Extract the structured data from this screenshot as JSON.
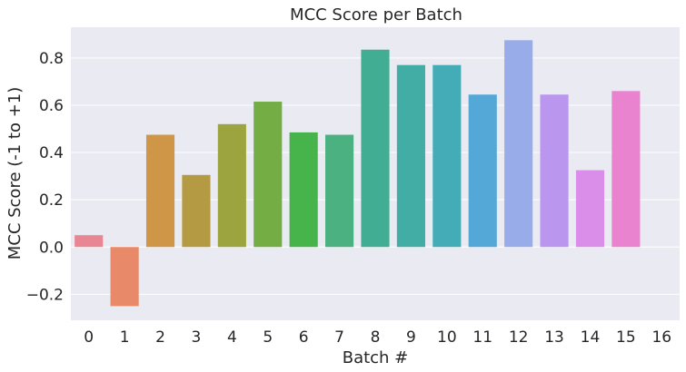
{
  "chart_data": {
    "type": "bar",
    "title": "MCC Score per Batch",
    "xlabel": "Batch #",
    "ylabel": "MCC Score (-1 to +1)",
    "categories": [
      "0",
      "1",
      "2",
      "3",
      "4",
      "5",
      "6",
      "7",
      "8",
      "9",
      "10",
      "11",
      "12",
      "13",
      "14",
      "15",
      "16"
    ],
    "values": [
      0.05,
      -0.25,
      0.475,
      0.305,
      0.52,
      0.615,
      0.485,
      0.475,
      0.835,
      0.77,
      0.77,
      0.645,
      0.875,
      0.645,
      0.325,
      0.66,
      null
    ],
    "yticks": [
      "−0.2",
      "0.0",
      "0.2",
      "0.4",
      "0.6",
      "0.8"
    ],
    "ytick_values": [
      -0.2,
      0,
      0.2,
      0.4,
      0.6,
      0.8
    ],
    "ylim": [
      -0.31,
      0.93
    ],
    "grid": true,
    "colors": [
      "#e88694",
      "#e8896a",
      "#d09648",
      "#b39a43",
      "#9ca440",
      "#73ad44",
      "#46b44b",
      "#4bb180",
      "#41ae93",
      "#42ada5",
      "#44acb6",
      "#54a8d8",
      "#98acea",
      "#bb96ee",
      "#da8de9",
      "#e983d0",
      "#e984b9"
    ],
    "background": "#eaeaf2",
    "gridline_color": "#ffffff"
  }
}
